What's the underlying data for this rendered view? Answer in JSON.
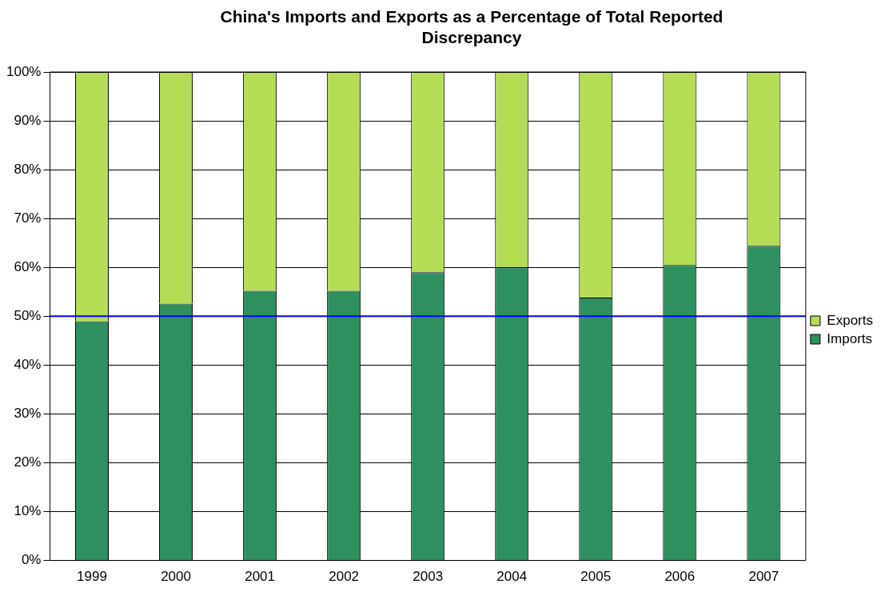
{
  "chart_data": {
    "type": "bar",
    "title": "China's Imports and Exports as a Percentage of Total Reported Discrepancy",
    "categories": [
      "1999",
      "2000",
      "2001",
      "2002",
      "2003",
      "2004",
      "2005",
      "2006",
      "2007"
    ],
    "stacked": true,
    "series": [
      {
        "name": "Imports",
        "color": "#2e8f5f",
        "values": [
          49,
          52.6,
          55.2,
          55.2,
          59,
          60,
          53.8,
          60.5,
          64.4
        ]
      },
      {
        "name": "Exports",
        "color": "#b5dc55",
        "values": [
          51,
          47.4,
          44.8,
          44.8,
          41,
          40,
          46.2,
          39.5,
          35.6
        ]
      }
    ],
    "ylim": [
      0,
      100
    ],
    "yticks": [
      {
        "value": 0,
        "label": "0%"
      },
      {
        "value": 10,
        "label": "10%"
      },
      {
        "value": 20,
        "label": "20%"
      },
      {
        "value": 30,
        "label": "30%"
      },
      {
        "value": 40,
        "label": "40%"
      },
      {
        "value": 50,
        "label": "50%"
      },
      {
        "value": 60,
        "label": "60%"
      },
      {
        "value": 70,
        "label": "70%"
      },
      {
        "value": 80,
        "label": "80%"
      },
      {
        "value": 90,
        "label": "90%"
      },
      {
        "value": 100,
        "label": "100%"
      }
    ],
    "grid": "y",
    "legend": "right",
    "ref_lines": [
      {
        "axis": "y",
        "value": 50,
        "color": "#0000ff"
      }
    ]
  }
}
